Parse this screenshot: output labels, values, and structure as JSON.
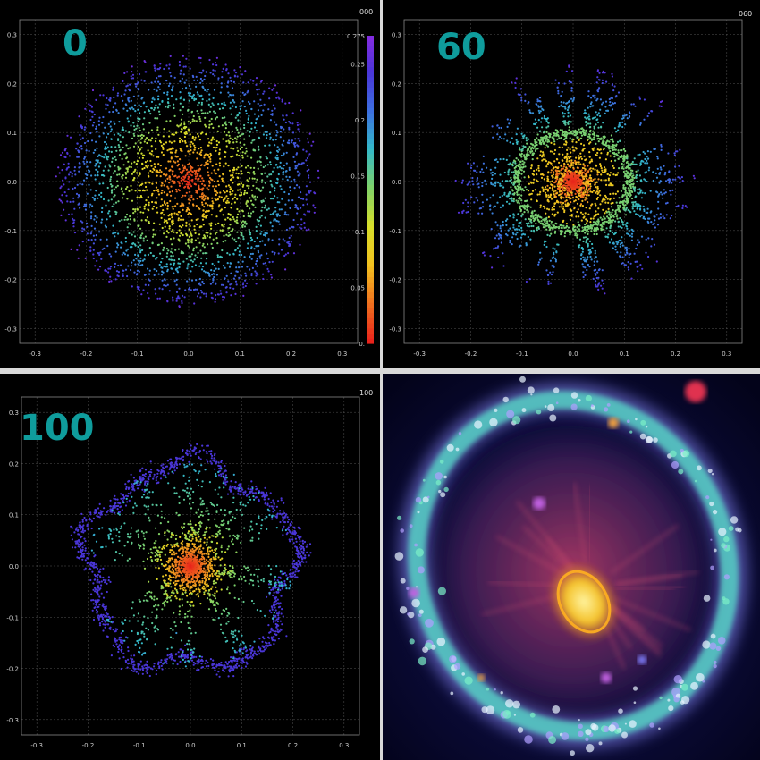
{
  "chart_data": [
    {
      "type": "scatter",
      "panel_label": "0",
      "corner_label": "000",
      "xlim": [
        -0.33,
        0.33
      ],
      "ylim": [
        -0.33,
        0.33
      ],
      "xticks": [
        "-0.3",
        "-0.2",
        "-0.1",
        "0.0",
        "0.1",
        "0.2",
        "0.3"
      ],
      "yticks": [
        "0.3",
        "0.2",
        "0.1",
        "0.0",
        "-0.1",
        "-0.2",
        "-0.3"
      ],
      "grid": true,
      "distribution": "filled disk, radius ~0.25, density peaked at center",
      "colorbar": {
        "ticks": [
          "0.275",
          "0.25",
          "0.2",
          "0.15",
          "0.1",
          "0.05",
          "0."
        ],
        "values": [
          0.275,
          0.25,
          0.2,
          0.15,
          0.1,
          0.05,
          0.0
        ],
        "range": [
          0,
          0.275
        ],
        "colormap": [
          "#e8231b",
          "#f0721f",
          "#f2c21f",
          "#d7df2a",
          "#7ed26a",
          "#33b8c8",
          "#3d6fe0",
          "#4a35d8",
          "#8a2be2"
        ]
      }
    },
    {
      "type": "scatter",
      "panel_label": "60",
      "corner_label": "060",
      "xlim": [
        -0.33,
        0.33
      ],
      "ylim": [
        -0.33,
        0.33
      ],
      "xticks": [
        "-0.3",
        "-0.2",
        "-0.1",
        "0.0",
        "0.1",
        "0.2",
        "0.3"
      ],
      "yticks": [
        "0.3",
        "0.2",
        "0.1",
        "0.0",
        "-0.1",
        "-0.2",
        "-0.3"
      ],
      "grid": true,
      "distribution": "dense central core, ring at radius ~0.1, radial spokes out to ~0.2"
    },
    {
      "type": "scatter",
      "panel_label": "100",
      "corner_label": "100",
      "xlim": [
        -0.33,
        0.33
      ],
      "ylim": [
        -0.33,
        0.33
      ],
      "xticks": [
        "-0.3",
        "-0.2",
        "-0.1",
        "0.0",
        "0.1",
        "0.2",
        "0.3"
      ],
      "yticks": [
        "0.3",
        "0.2",
        "0.1",
        "0.0",
        "-0.1",
        "-0.2",
        "-0.3"
      ],
      "grid": true,
      "distribution": "central core radius ~0.06, outer irregular ring at ~0.2, radial spokes"
    }
  ],
  "photo": {
    "subject": "ring galaxy with yellow elliptical core and blue-green outer ring",
    "colors": {
      "background": "#05052a",
      "ring": "#56e0c8",
      "ring_edge": "#8a8cff",
      "core": "#f5d23a",
      "haze": "#a0305a"
    }
  }
}
